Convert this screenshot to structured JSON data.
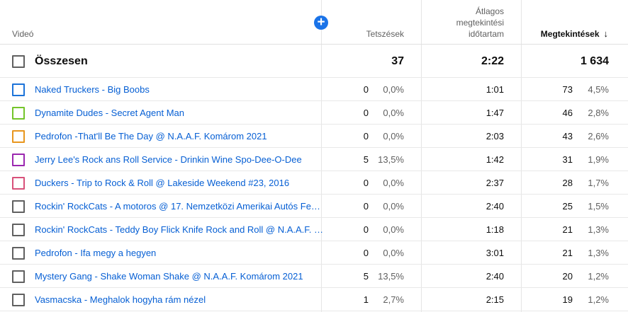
{
  "header": {
    "video": "Videó",
    "likes": "Tetszések",
    "avg_duration": [
      "Átlagos",
      "megtekintési",
      "időtartam"
    ],
    "views": "Megtekintések",
    "sort_arrow": "↓",
    "add_icon": "plus-icon"
  },
  "total": {
    "label": "Összesen",
    "likes": "37",
    "duration": "2:22",
    "views": "1 634"
  },
  "rows": [
    {
      "title": "Naked Truckers - Big Boobs",
      "color": "#1c73d9",
      "likes": "0",
      "likes_pct": "0,0%",
      "duration": "1:01",
      "views": "73",
      "views_pct": "4,5%"
    },
    {
      "title": "Dynamite Dudes - Secret Agent Man",
      "color": "#74c52a",
      "likes": "0",
      "likes_pct": "0,0%",
      "duration": "1:47",
      "views": "46",
      "views_pct": "2,8%"
    },
    {
      "title": "Pedrofon -That'll Be The Day @ N.A.A.F. Komárom 2021",
      "color": "#e8961e",
      "likes": "0",
      "likes_pct": "0,0%",
      "duration": "2:03",
      "views": "43",
      "views_pct": "2,6%"
    },
    {
      "title": "Jerry Lee's Rock ans Roll Service - Drinkin Wine Spo-Dee-O-Dee",
      "color": "#9b27b0",
      "likes": "5",
      "likes_pct": "13,5%",
      "duration": "1:42",
      "views": "31",
      "views_pct": "1,9%"
    },
    {
      "title": "Duckers - Trip to Rock & Roll @ Lakeside Weekend #23, 2016",
      "color": "#d8517a",
      "likes": "0",
      "likes_pct": "0,0%",
      "duration": "2:37",
      "views": "28",
      "views_pct": "1,7%"
    },
    {
      "title": "Rockin' RockCats - A motoros @ 17. Nemzetközi Amerikai Autós Fe…",
      "color": "#606060",
      "likes": "0",
      "likes_pct": "0,0%",
      "duration": "2:40",
      "views": "25",
      "views_pct": "1,5%"
    },
    {
      "title": "Rockin' RockCats - Teddy Boy Flick Knife Rock and Roll @ N.A.A.F. …",
      "color": "#606060",
      "likes": "0",
      "likes_pct": "0,0%",
      "duration": "1:18",
      "views": "21",
      "views_pct": "1,3%"
    },
    {
      "title": "Pedrofon - Ifa megy a hegyen",
      "color": "#606060",
      "likes": "0",
      "likes_pct": "0,0%",
      "duration": "3:01",
      "views": "21",
      "views_pct": "1,3%"
    },
    {
      "title": "Mystery Gang - Shake Woman Shake @ N.A.A.F. Komárom 2021",
      "color": "#606060",
      "likes": "5",
      "likes_pct": "13,5%",
      "duration": "2:40",
      "views": "20",
      "views_pct": "1,2%"
    },
    {
      "title": "Vasmacska - Meghalok hogyha rám nézel",
      "color": "#606060",
      "likes": "1",
      "likes_pct": "2,7%",
      "duration": "2:15",
      "views": "19",
      "views_pct": "1,2%"
    }
  ]
}
